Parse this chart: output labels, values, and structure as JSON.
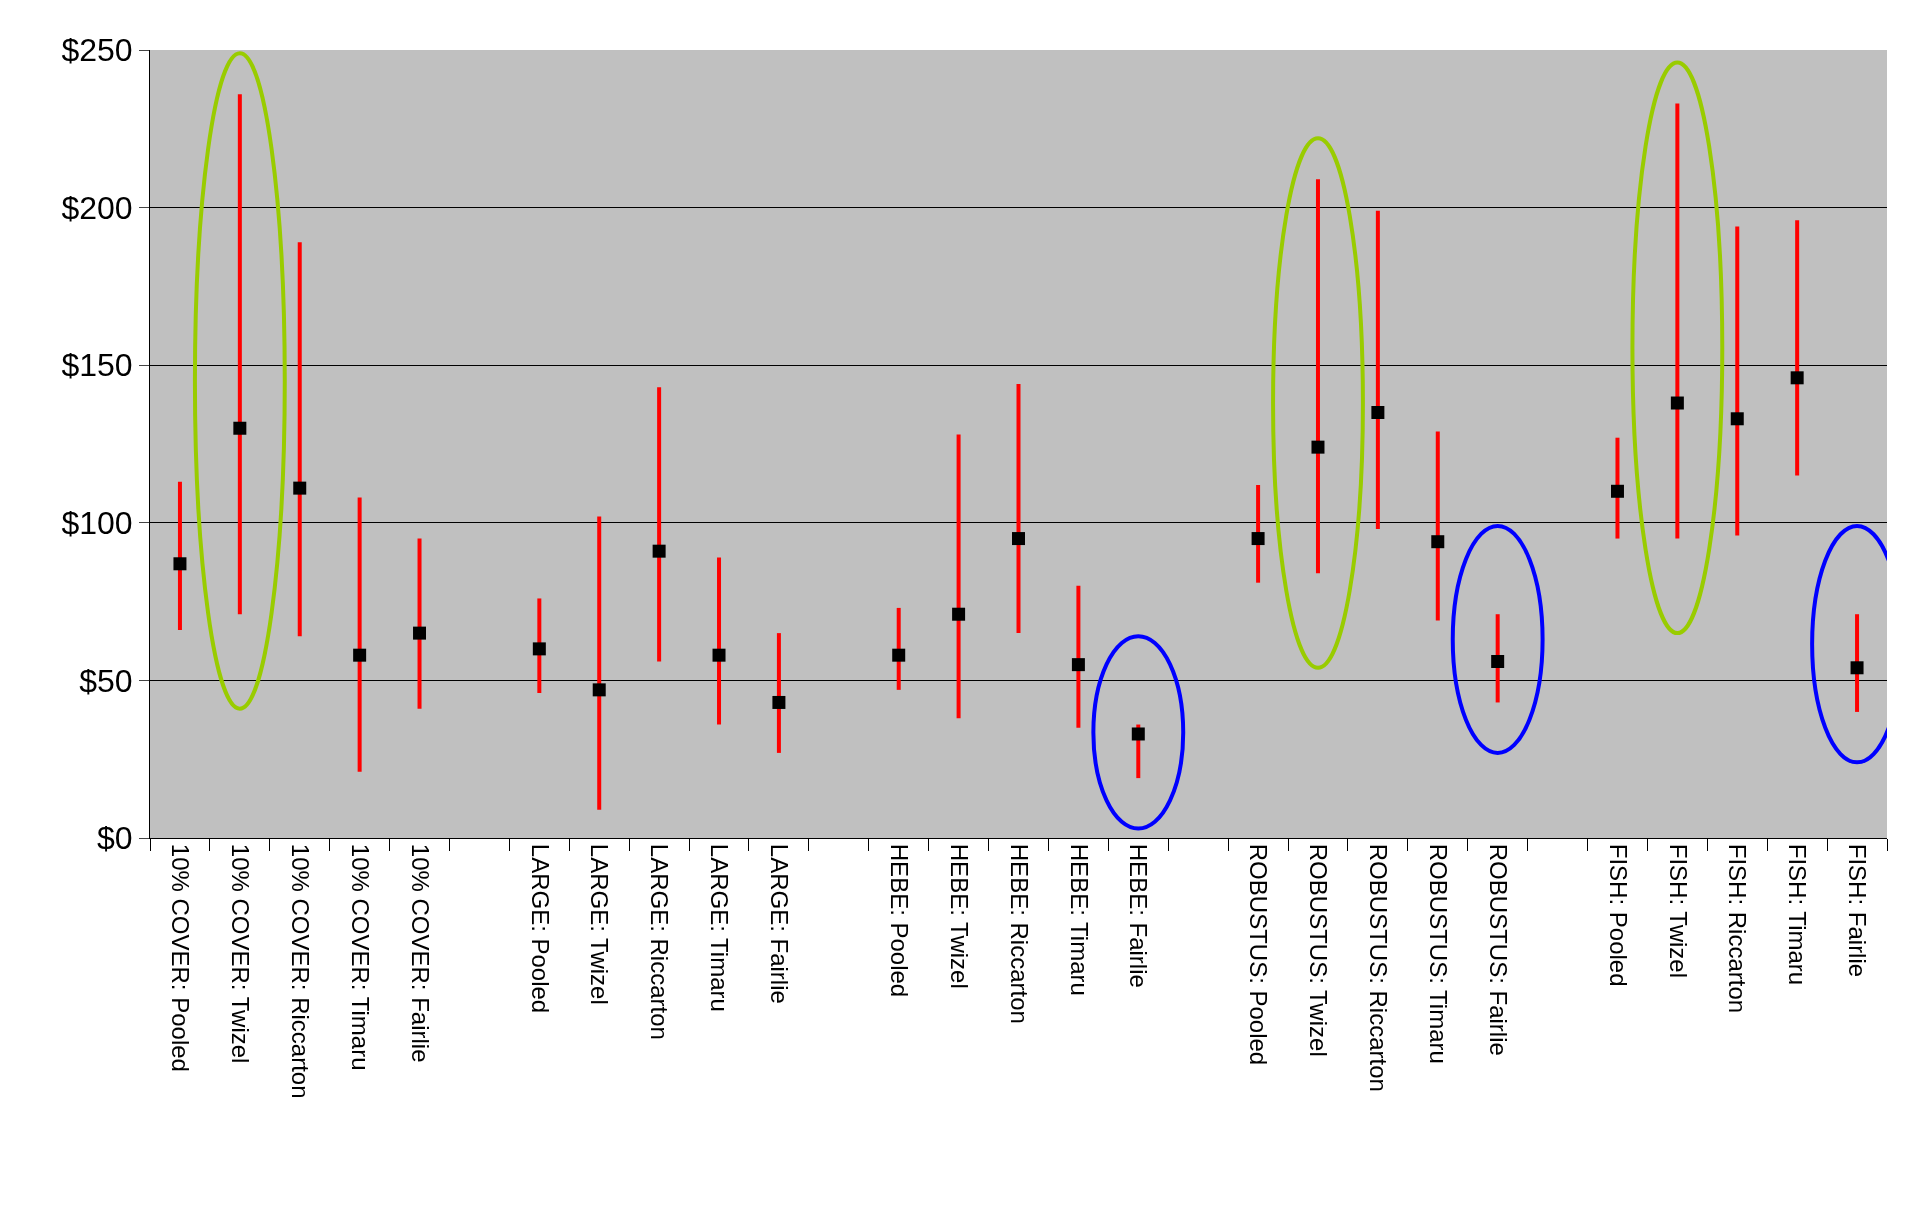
{
  "chart_data": {
    "type": "scatter",
    "categories": [
      "10% COVER: Pooled",
      "10% COVER: Twizel",
      "10% COVER: Riccarton",
      "10% COVER: Timaru",
      "10% COVER: Fairlie",
      null,
      "LARGE: Pooled",
      "LARGE: Twizel",
      "LARGE: Riccarton",
      "LARGE: Timaru",
      "LARGE: Fairlie",
      null,
      "HEBE: Pooled",
      "HEBE: Twizel",
      "HEBE: Riccarton",
      "HEBE: Timaru",
      "HEBE: Fairlie",
      null,
      "ROBUSTUS: Pooled",
      "ROBUSTUS: Twizel",
      "ROBUSTUS: Riccarton",
      "ROBUSTUS: Timaru",
      "ROBUSTUS: Fairlie",
      null,
      "FISH: Pooled",
      "FISH: Twizel",
      "FISH: Riccarton",
      "FISH: Timaru",
      "FISH: Fairlie"
    ],
    "series": [
      {
        "color": "#000000",
        "values": [
          87,
          130,
          111,
          58,
          65,
          null,
          60,
          47,
          91,
          58,
          43,
          null,
          58,
          71,
          95,
          55,
          33,
          null,
          95,
          124,
          135,
          94,
          56,
          null,
          110,
          138,
          133,
          146,
          54
        ],
        "errors": [
          [
            66,
            113
          ],
          [
            71,
            236
          ],
          [
            64,
            189
          ],
          [
            21,
            108
          ],
          [
            41,
            95
          ],
          null,
          [
            46,
            76
          ],
          [
            9,
            102
          ],
          [
            56,
            143
          ],
          [
            36,
            89
          ],
          [
            27,
            65
          ],
          null,
          [
            47,
            73
          ],
          [
            38,
            128
          ],
          [
            65,
            144
          ],
          [
            35,
            80
          ],
          [
            19,
            36
          ],
          null,
          [
            81,
            112
          ],
          [
            84,
            209
          ],
          [
            98,
            199
          ],
          [
            69,
            129
          ],
          [
            43,
            71
          ],
          null,
          [
            95,
            127
          ],
          [
            95,
            233
          ],
          [
            96,
            194
          ],
          [
            115,
            196
          ],
          [
            40,
            71
          ]
        ]
      }
    ],
    "ylim": [
      0,
      250
    ],
    "yticks": [
      {
        "value": 0,
        "label": "$0"
      },
      {
        "value": 50,
        "label": "$50"
      },
      {
        "value": 100,
        "label": "$100"
      },
      {
        "value": 150,
        "label": "$150"
      },
      {
        "value": 200,
        "label": "$200"
      },
      {
        "value": 250,
        "label": "$250"
      }
    ],
    "grid": "y",
    "marker": "square"
  }
}
